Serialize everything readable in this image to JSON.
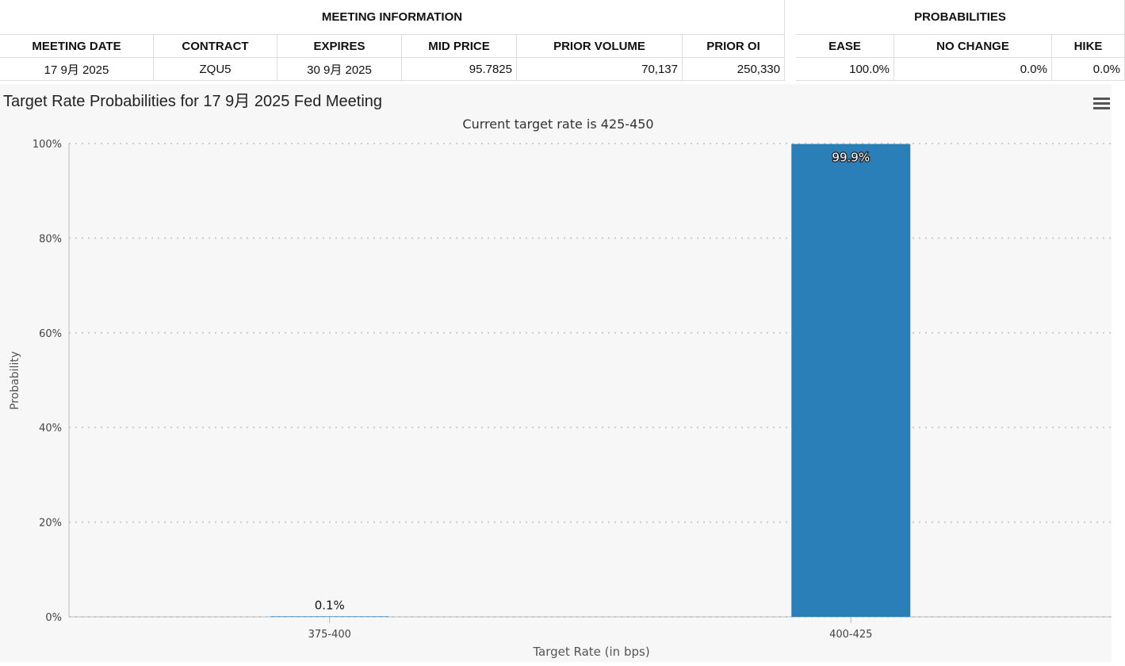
{
  "meeting_info": {
    "title": "MEETING INFORMATION",
    "headers": [
      "MEETING DATE",
      "CONTRACT",
      "EXPIRES",
      "MID PRICE",
      "PRIOR VOLUME",
      "PRIOR OI"
    ],
    "rows": [
      [
        "17 9月 2025",
        "ZQU5",
        "30 9月 2025",
        "95.7825",
        "70,137",
        "250,330"
      ]
    ]
  },
  "probabilities": {
    "title": "PROBABILITIES",
    "headers": [
      "EASE",
      "NO CHANGE",
      "HIKE"
    ],
    "rows": [
      [
        "100.0%",
        "0.0%",
        "0.0%"
      ]
    ]
  },
  "chart_data": {
    "type": "bar",
    "title": "Target Rate Probabilities for 17 9月 2025 Fed Meeting",
    "subtitle": "Current target rate is 425-450",
    "x_label": "Target Rate (in bps)",
    "y_label": "Probability",
    "categories": [
      "375-400",
      "400-425"
    ],
    "values": [
      0.1,
      99.9
    ],
    "value_labels": [
      "0.1%",
      "99.9%"
    ],
    "color": "#2a7fb8",
    "ylim": [
      0,
      100
    ],
    "yticks": [
      {
        "value": 0,
        "label": "0%"
      },
      {
        "value": 20,
        "label": "20%"
      },
      {
        "value": 40,
        "label": "40%"
      },
      {
        "value": 60,
        "label": "60%"
      },
      {
        "value": 80,
        "label": "80%"
      },
      {
        "value": 100,
        "label": "100%"
      }
    ],
    "grid": true
  }
}
